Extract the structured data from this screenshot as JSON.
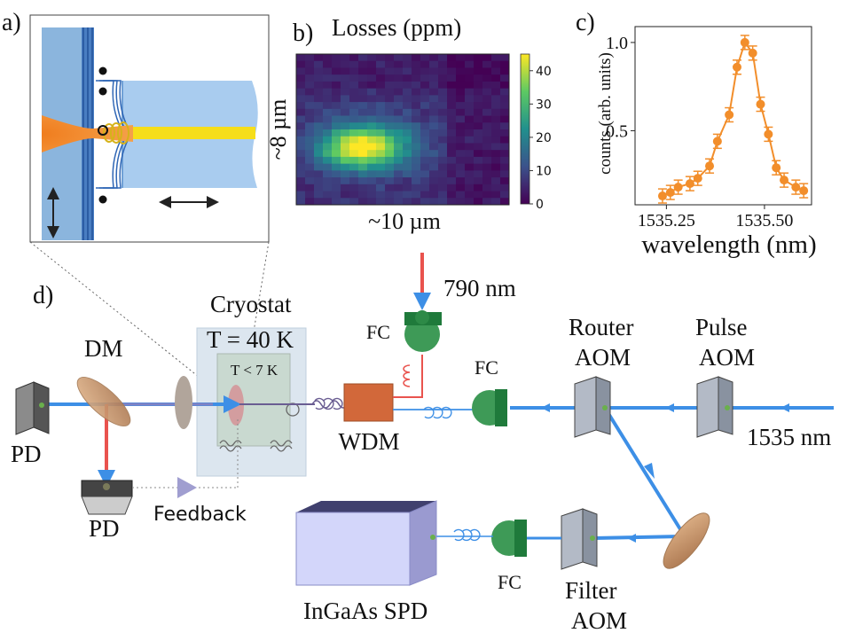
{
  "panels": {
    "a": {
      "label": "a)"
    },
    "b": {
      "label": "b)",
      "title": "Losses (ppm)",
      "x_label": "~10 µm",
      "y_label": "~8 µm",
      "colorbar": {
        "ticks": [
          "0",
          "10",
          "20",
          "30",
          "40"
        ],
        "min": 0,
        "max": 45,
        "colormap": "viridis"
      }
    },
    "c": {
      "label": "c)"
    },
    "d": {
      "label": "d)",
      "cryostat_title": "Cryostat",
      "cryostat_temp": "T = 40 K",
      "inner_temp": "T < 7 K",
      "laser_790": "790 nm",
      "laser_1535": "1535 nm",
      "fc_label": "FC",
      "dm_label": "DM",
      "pd_label": "PD",
      "wdm_label": "WDM",
      "router_aom": [
        "Router",
        "AOM"
      ],
      "pulse_aom": [
        "Pulse",
        "AOM"
      ],
      "filter_aom": [
        "Filter",
        "AOM"
      ],
      "spd_label": "InGaAs SPD",
      "feedback_label": "Feedback"
    }
  },
  "chart_data": {
    "type": "scatter",
    "xlabel": "wavelength (nm)",
    "ylabel": "counts (arb. units)",
    "xlim": [
      1535.17,
      1535.62
    ],
    "ylim": [
      0.08,
      1.09
    ],
    "x_ticks": [
      "1535.25",
      "1535.50"
    ],
    "y_ticks": [
      "0.5",
      "1.0"
    ],
    "grid": false,
    "series": [
      {
        "x": [
          1535.24,
          1535.26,
          1535.28,
          1535.31,
          1535.33,
          1535.36,
          1535.38,
          1535.41,
          1535.43,
          1535.45,
          1535.47,
          1535.49,
          1535.51,
          1535.53,
          1535.55,
          1535.58,
          1535.6
        ],
        "y": [
          0.13,
          0.15,
          0.18,
          0.2,
          0.23,
          0.3,
          0.44,
          0.59,
          0.86,
          1.0,
          0.94,
          0.65,
          0.48,
          0.29,
          0.22,
          0.18,
          0.16
        ],
        "yerr": 0.04,
        "color": "#f28e2b"
      }
    ]
  },
  "heatmap_data": {
    "hot_spot": {
      "col": 0.3,
      "row": 0.63,
      "peak": 42
    },
    "rows": 22,
    "cols": 24
  }
}
